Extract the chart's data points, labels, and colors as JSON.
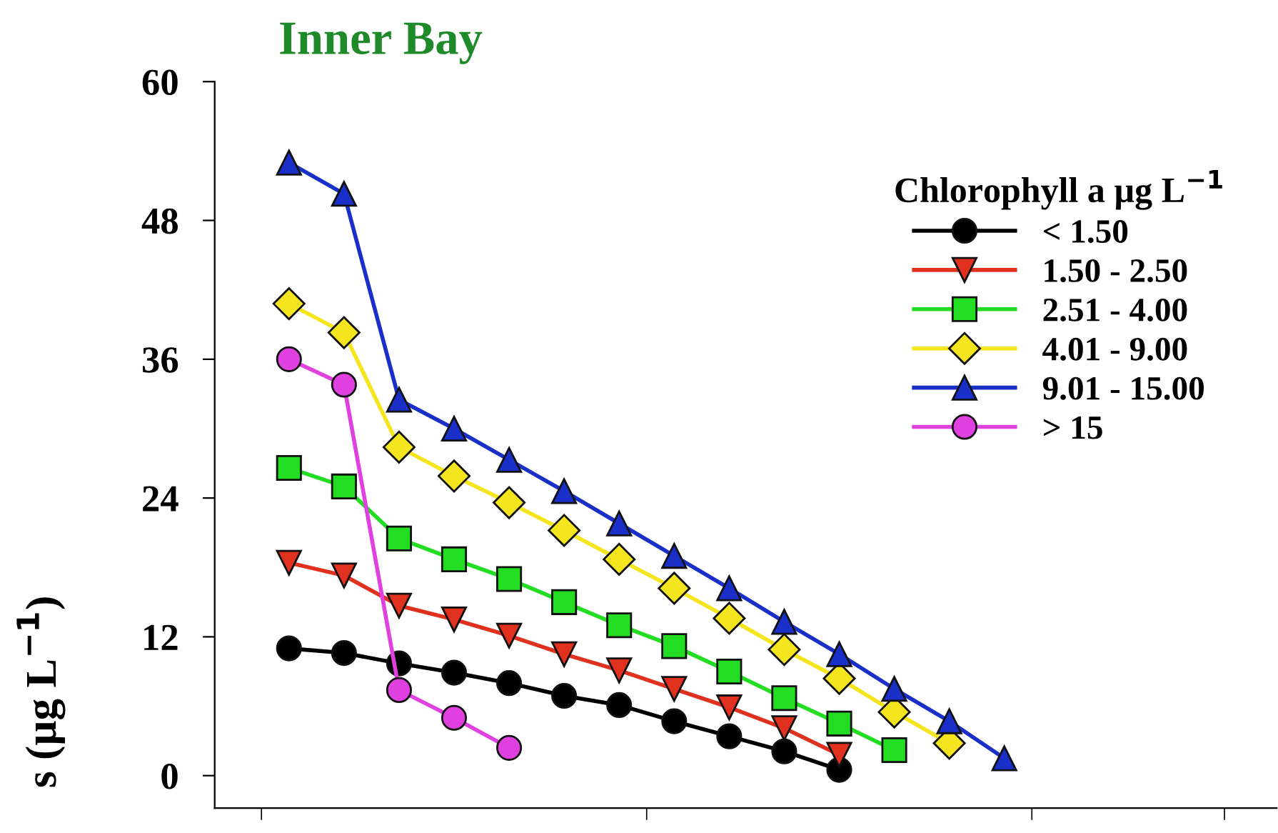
{
  "chart_data": {
    "type": "line",
    "title": "Inner Bay",
    "ylabel": "s (µg L$^{−1}$)",
    "legend_title": "Chlorophyll a µg L$^{−1}$",
    "categories": [
      null,
      null,
      null,
      null,
      null,
      null,
      null,
      null,
      null,
      null,
      null,
      null,
      null,
      null
    ],
    "ylim": [
      -2.8,
      60
    ],
    "yticks": [
      0,
      12,
      24,
      36,
      48,
      60
    ],
    "grid": false,
    "legend": "top right",
    "line_style": "solid",
    "series": [
      {
        "name": "< 1.50",
        "color": "#000000",
        "marker": "circle",
        "values": [
          11.0,
          10.6,
          9.7,
          8.9,
          8.0,
          6.9,
          6.1,
          4.7,
          3.4,
          2.1,
          0.5,
          null,
          null,
          null
        ]
      },
      {
        "name": "1.50 - 2.50",
        "color": "#e0301e",
        "marker": "triangle_down",
        "values": [
          18.4,
          17.3,
          14.7,
          13.5,
          12.1,
          10.5,
          9.1,
          7.5,
          5.9,
          4.1,
          1.8,
          null,
          null,
          null
        ]
      },
      {
        "name": "2.51 - 4.00",
        "color": "#22dd22",
        "marker": "square",
        "values": [
          26.6,
          25.0,
          20.5,
          18.7,
          17.0,
          15.0,
          13.0,
          11.2,
          9.0,
          6.7,
          4.5,
          2.2,
          null,
          null
        ]
      },
      {
        "name": "4.01 - 9.00",
        "color": "#f5e51e",
        "marker": "diamond",
        "values": [
          40.8,
          38.3,
          28.4,
          25.9,
          23.6,
          21.2,
          18.7,
          16.2,
          13.6,
          10.9,
          8.4,
          5.5,
          2.8,
          null
        ]
      },
      {
        "name": "9.01 - 15.00",
        "color": "#1a2fc8",
        "marker": "triangle",
        "values": [
          53.0,
          50.3,
          32.5,
          30.0,
          27.3,
          24.6,
          21.8,
          19.0,
          16.2,
          13.3,
          10.5,
          7.5,
          4.7,
          1.5
        ]
      },
      {
        "name": "> 15",
        "color": "#e040e0",
        "marker": "circle",
        "values": [
          36.0,
          33.8,
          7.4,
          5.0,
          2.4,
          null,
          null,
          null,
          null,
          null,
          null,
          null,
          null,
          null
        ]
      }
    ]
  }
}
